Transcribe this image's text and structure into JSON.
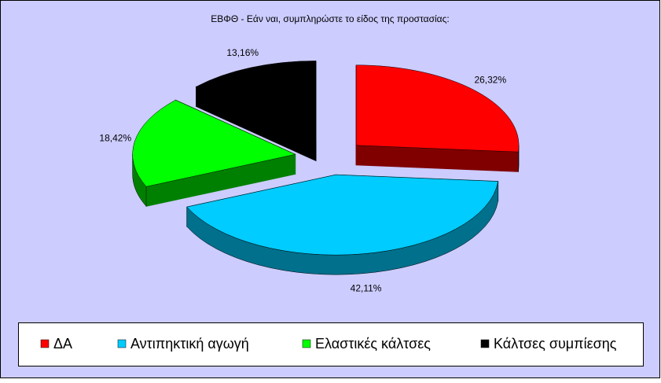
{
  "chart_data": {
    "type": "pie",
    "title": "ΕΒΦΘ - Εάν ναι, συμπληρώστε το είδος της προστασίας:",
    "categories": [
      "ΔΑ",
      "Αντιπηκτική αγωγή",
      "Ελαστικές κάλτσες",
      "Κάλτσες συμπίεσης"
    ],
    "values": [
      26.32,
      42.11,
      18.42,
      13.16
    ],
    "value_labels": [
      "26,32%",
      "42,11%",
      "18,42%",
      "13,16%"
    ],
    "colors": [
      "#ff0000",
      "#00ccff",
      "#00ff00",
      "#000000"
    ],
    "side_colors": [
      "#800000",
      "#00708c",
      "#008000",
      "#000000"
    ],
    "legend": "bottom"
  }
}
